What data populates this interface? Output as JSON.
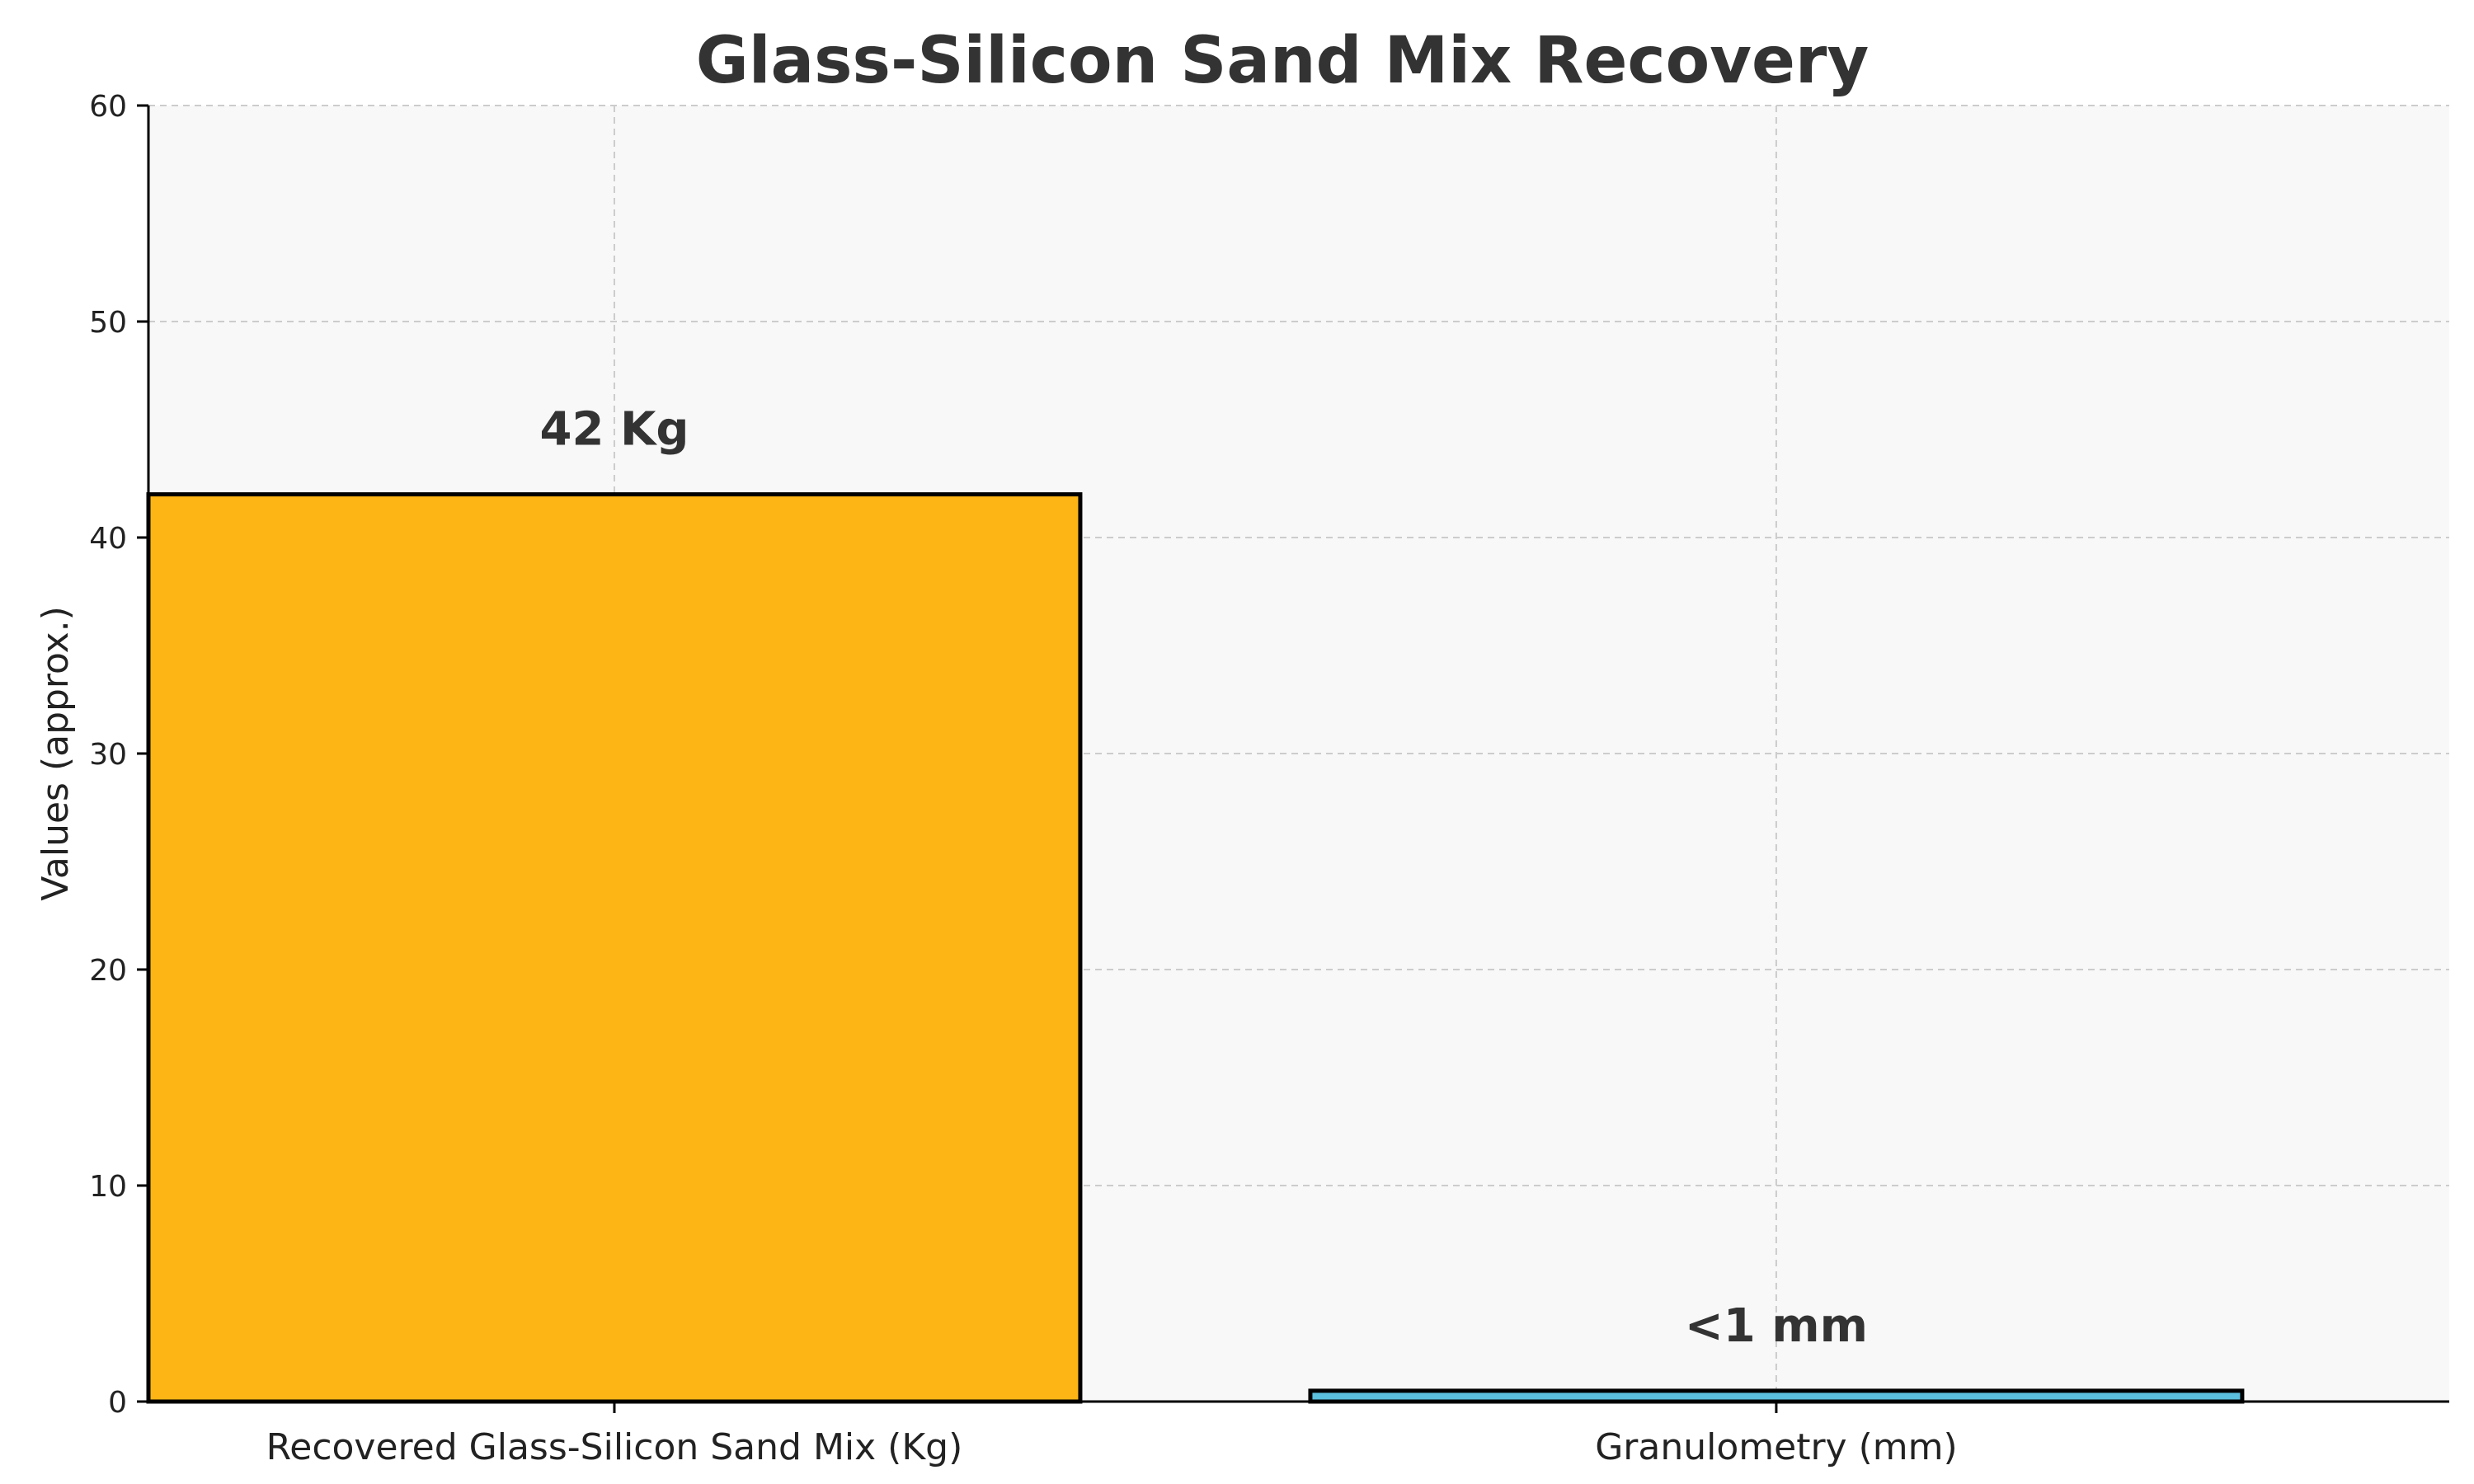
{
  "chart_data": {
    "type": "bar",
    "title": "Glass-Silicon Sand Mix Recovery",
    "ylabel": "Values (approx.)",
    "xlabel": "",
    "categories": [
      "Recovered Glass-Silicon Sand Mix (Kg)",
      "Granulometry (mm)"
    ],
    "values": [
      42,
      0.5
    ],
    "data_labels": [
      "42 Kg",
      "<1 mm"
    ],
    "colors": [
      "#FDB515",
      "#5BC0DE"
    ],
    "ylim": [
      0,
      60
    ],
    "yticks": [
      "0",
      "10",
      "20",
      "30",
      "40",
      "50",
      "60"
    ],
    "grid": true
  }
}
